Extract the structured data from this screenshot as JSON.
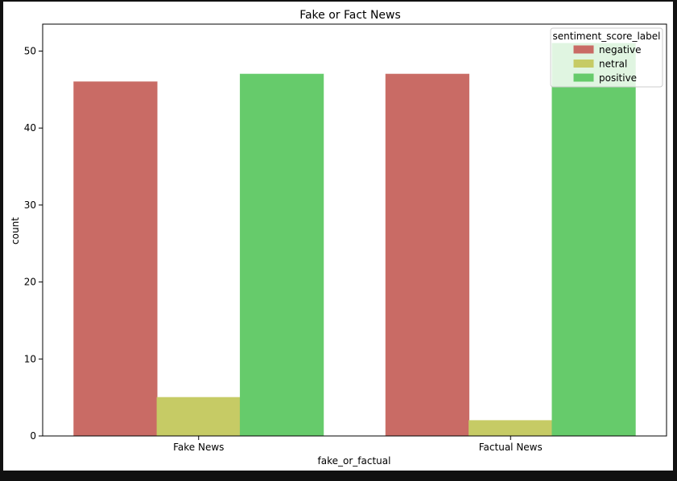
{
  "chart_data": {
    "type": "bar",
    "title": "Fake or Fact News",
    "xlabel": "fake_or_factual",
    "ylabel": "count",
    "categories": [
      "Fake News",
      "Factual News"
    ],
    "series": [
      {
        "name": "negative",
        "values": [
          46,
          47
        ],
        "color": "#c96b65"
      },
      {
        "name": "netral",
        "values": [
          5,
          2
        ],
        "color": "#c6cb65"
      },
      {
        "name": "positive",
        "values": [
          47,
          51
        ],
        "color": "#66cb6b"
      }
    ],
    "ylim": [
      0,
      53.5
    ],
    "yticks": [
      0,
      10,
      20,
      30,
      40,
      50
    ],
    "grid": false,
    "legend": {
      "title": "sentiment_score_label",
      "position": "top-right"
    }
  }
}
